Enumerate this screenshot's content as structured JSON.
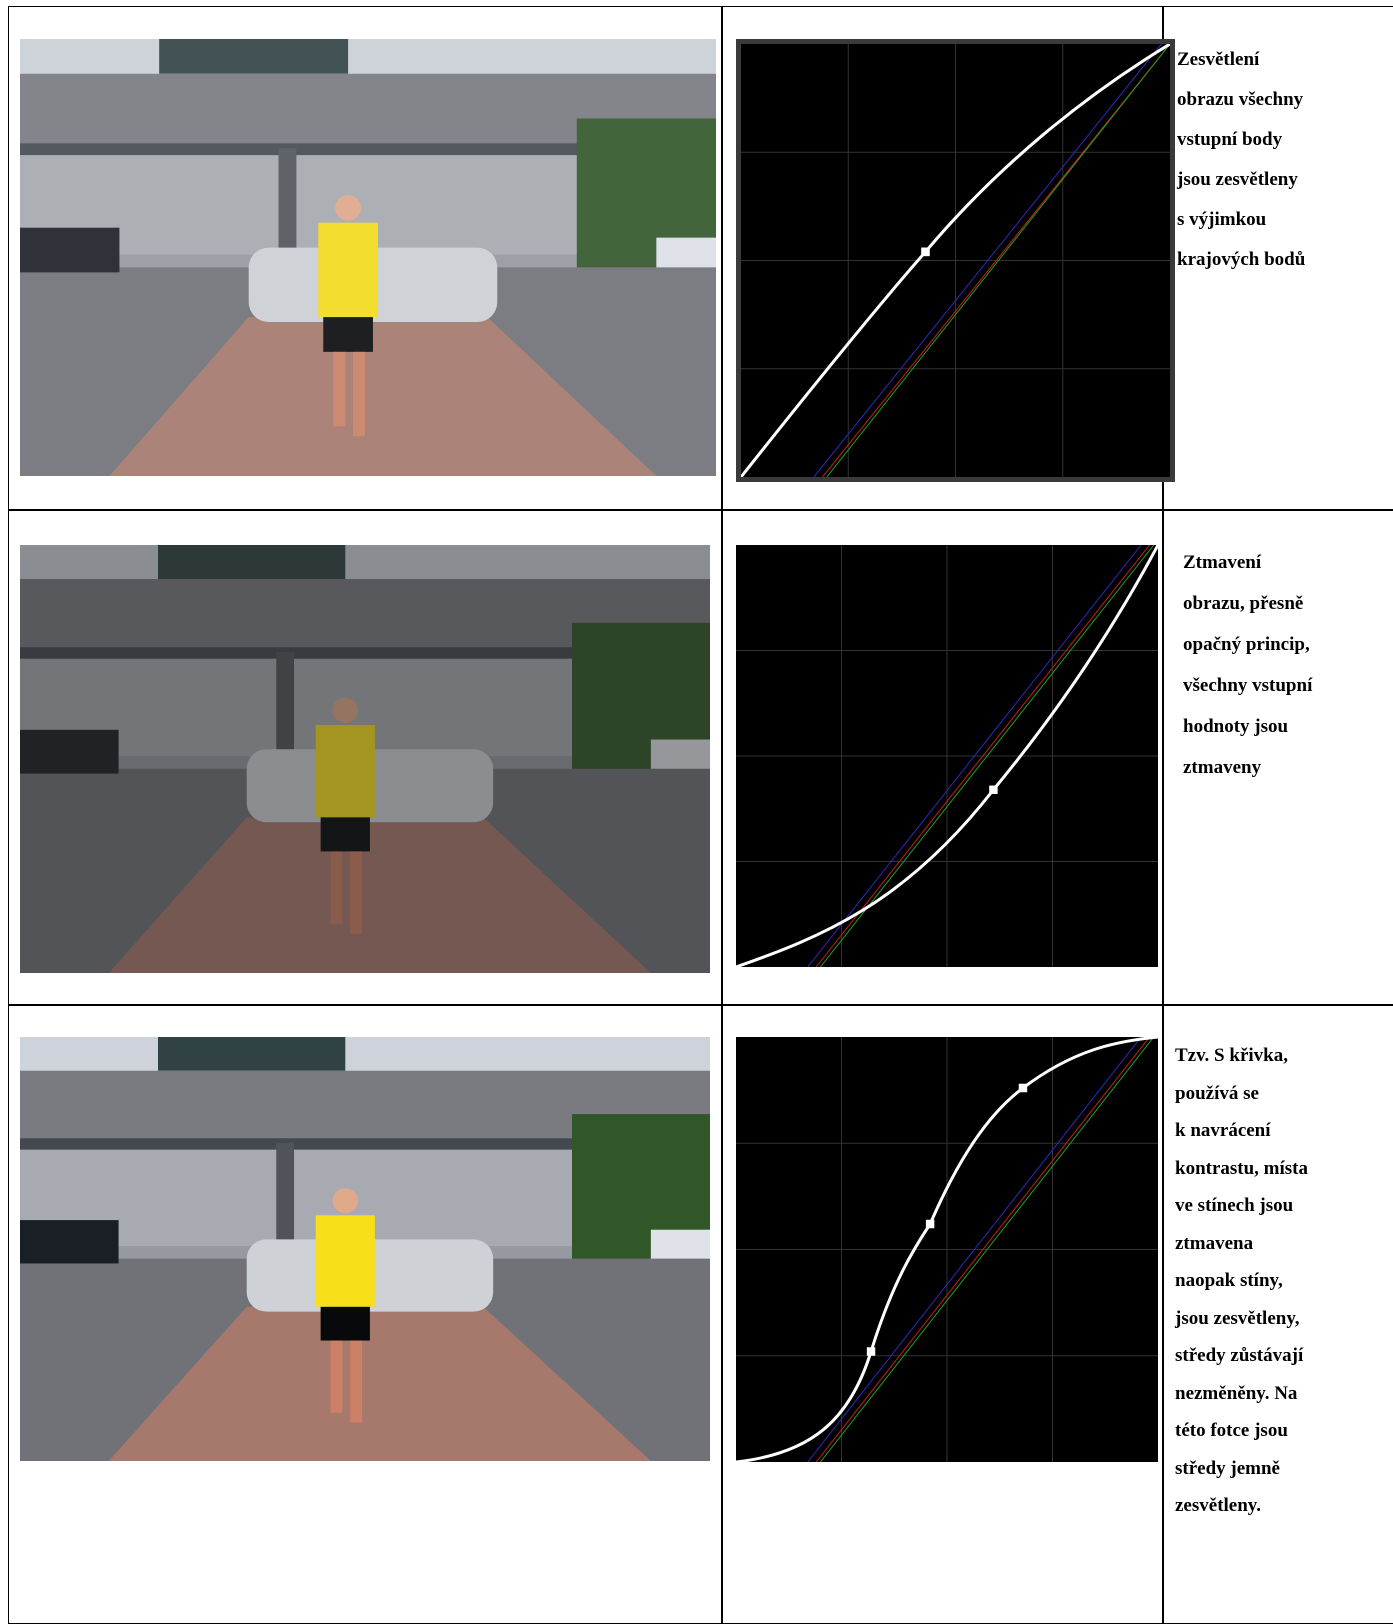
{
  "rows": [
    {
      "description": [
        "Zesvětlení",
        "obrazu všechny",
        "vstupní body",
        "jsou zesvětleny",
        "s výjimkou",
        "krajových bodů"
      ]
    },
    {
      "description": [
        "Ztmavení",
        "obrazu, přesně",
        "opačný princip,",
        "všechny vstupní",
        "hodnoty jsou",
        "ztmaveny"
      ]
    },
    {
      "description": [
        "Tzv. S křivka,",
        "používá se",
        "k navrácení",
        "kontrastu, místa",
        "ve stínech jsou",
        "ztmavena",
        "naopak stíny,",
        "jsou zesvětleny,",
        "středy zůstávají",
        "nezměněny. Na",
        "této fotce jsou",
        "středy jemně",
        "zesvětleny."
      ]
    }
  ]
}
